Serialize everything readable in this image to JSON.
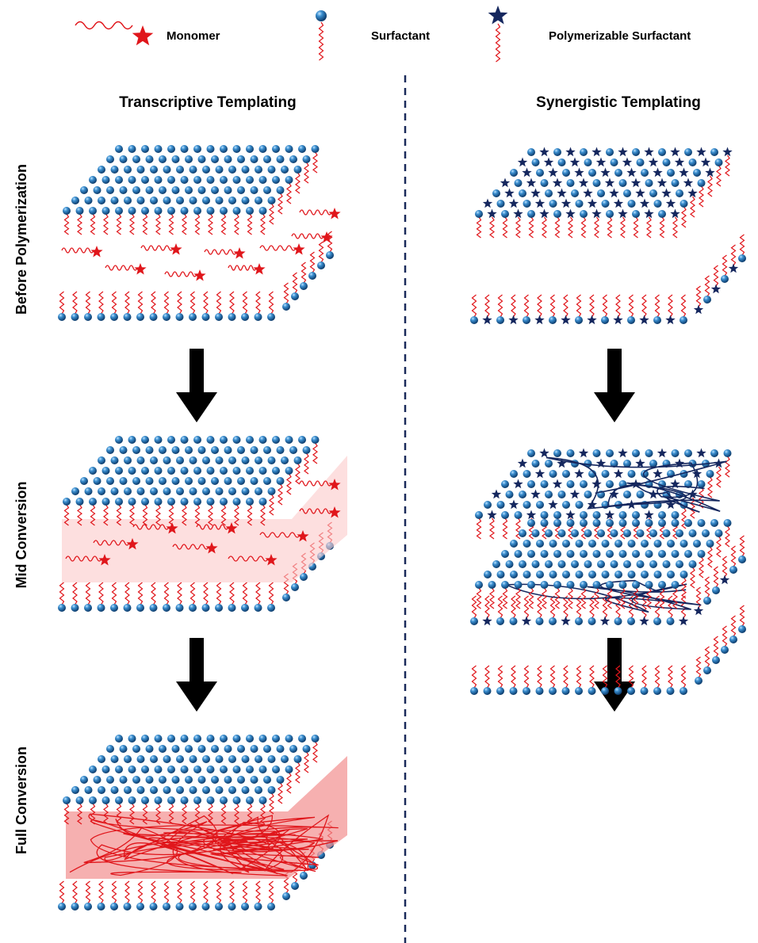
{
  "legend": [
    "Monomer",
    "Surfactant",
    "Polymerizable Surfactant"
  ],
  "columns": [
    "Transcriptive Templating",
    "Synergistic Templating"
  ],
  "rows": [
    "Before Polymerization",
    "Mid Conversion",
    "Full Conversion"
  ]
}
